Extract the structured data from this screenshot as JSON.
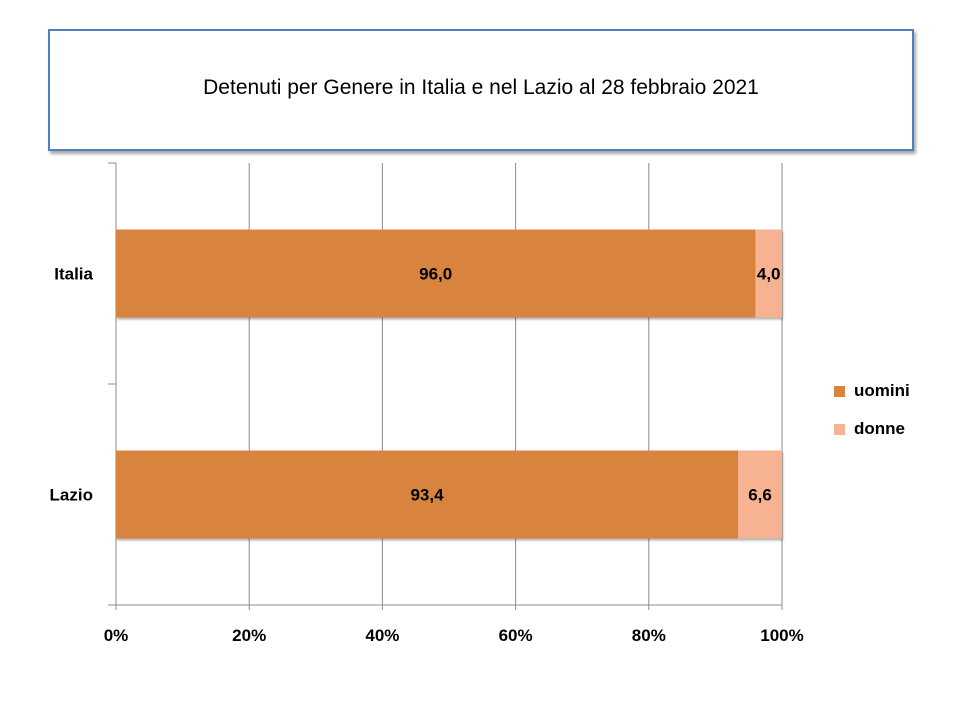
{
  "chart_data": {
    "type": "bar",
    "orientation": "horizontal",
    "stacked": "percent",
    "title": "Detenuti per Genere in Italia e nel Lazio al 28 febbraio 2021",
    "categories": [
      "Italia",
      "Lazio"
    ],
    "series": [
      {
        "name": "uomini",
        "values": [
          96.0,
          93.4
        ],
        "labels": [
          "96,0",
          "93,4"
        ],
        "color": "#d9843e"
      },
      {
        "name": "donne",
        "values": [
          4.0,
          6.6
        ],
        "labels": [
          "4,0",
          "6,6"
        ],
        "color": "#f7b292"
      }
    ],
    "x_ticks": [
      "0%",
      "20%",
      "40%",
      "60%",
      "80%",
      "100%"
    ],
    "xlim": [
      0,
      100
    ],
    "grid": true,
    "legend_position": "right"
  }
}
